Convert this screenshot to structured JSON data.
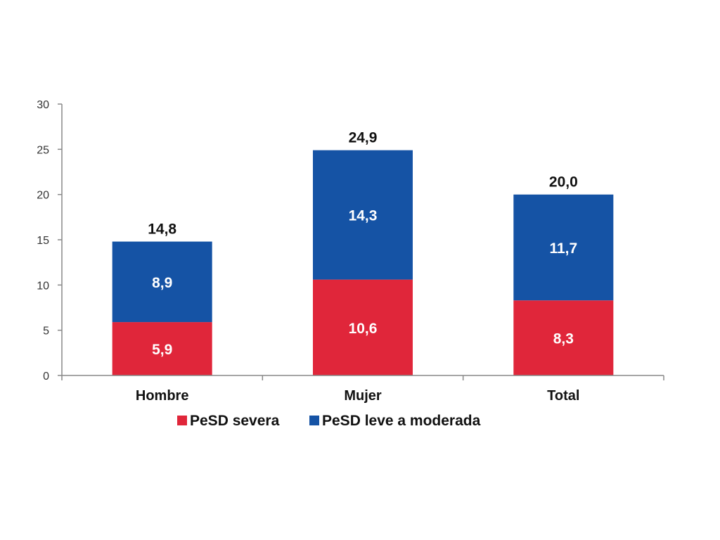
{
  "chart_data": {
    "type": "bar",
    "stacked": true,
    "categories": [
      "Hombre",
      "Mujer",
      "Total"
    ],
    "series": [
      {
        "name": "PeSD severa",
        "values": [
          5.9,
          10.6,
          8.3
        ],
        "labels": [
          "5,9",
          "10,6",
          "8,3"
        ],
        "color": "#e0263a"
      },
      {
        "name": "PeSD leve a moderada",
        "values": [
          8.9,
          14.3,
          11.7
        ],
        "labels": [
          "8,9",
          "14,3",
          "11,7"
        ],
        "color": "#1553a5"
      }
    ],
    "totals": [
      14.8,
      24.9,
      20.0
    ],
    "total_labels": [
      "14,8",
      "24,9",
      "20,0"
    ],
    "ylim": [
      0,
      30
    ],
    "yticks": [
      "0",
      "5",
      "10",
      "15",
      "20",
      "25",
      "30"
    ],
    "grid": false,
    "legend_position": "bottom"
  }
}
